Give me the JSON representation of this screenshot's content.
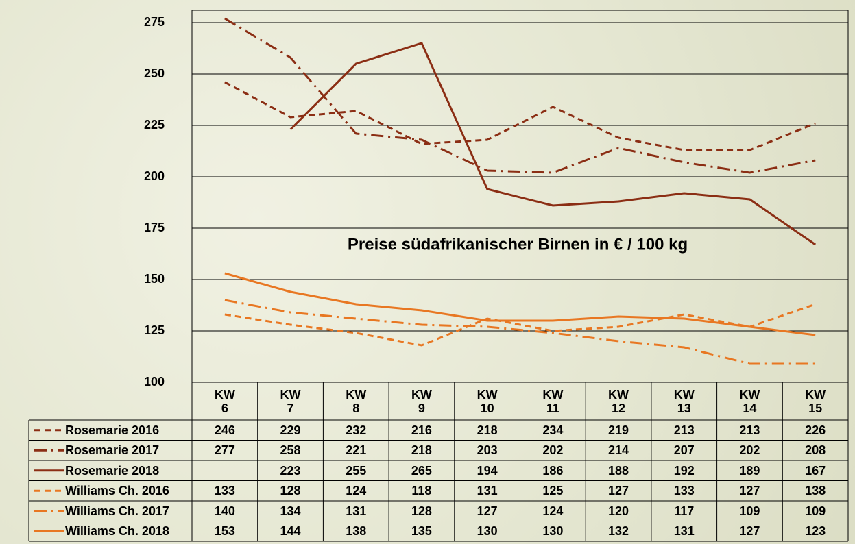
{
  "chart_data": {
    "type": "line",
    "title": "Preise südafrikanischer Birnen in € / 100 kg",
    "categories": [
      "KW 6",
      "KW 7",
      "KW 8",
      "KW 9",
      "KW 10",
      "KW 11",
      "KW 12",
      "KW 13",
      "KW 14",
      "KW 15"
    ],
    "series": [
      {
        "name": "Rosemarie 2016",
        "color": "#8b2e14",
        "dash": "dashed",
        "values": [
          246,
          229,
          232,
          216,
          218,
          234,
          219,
          213,
          213,
          226
        ]
      },
      {
        "name": "Rosemarie 2017",
        "color": "#8b2e14",
        "dash": "dashdot",
        "values": [
          277,
          258,
          221,
          218,
          203,
          202,
          214,
          207,
          202,
          208
        ]
      },
      {
        "name": "Rosemarie 2018",
        "color": "#8b2e14",
        "dash": "solid",
        "values": [
          null,
          223,
          255,
          265,
          194,
          186,
          188,
          192,
          189,
          167
        ]
      },
      {
        "name": "Williams Ch. 2016",
        "color": "#e87722",
        "dash": "dashed",
        "values": [
          133,
          128,
          124,
          118,
          131,
          125,
          127,
          133,
          127,
          138
        ]
      },
      {
        "name": "Williams Ch. 2017",
        "color": "#e87722",
        "dash": "dashdot",
        "values": [
          140,
          134,
          131,
          128,
          127,
          124,
          120,
          117,
          109,
          109
        ]
      },
      {
        "name": "Williams Ch. 2018",
        "color": "#e87722",
        "dash": "solid",
        "values": [
          153,
          144,
          138,
          135,
          130,
          130,
          132,
          131,
          127,
          123
        ]
      }
    ],
    "ylim": [
      100,
      280
    ],
    "yticks": [
      100,
      125,
      150,
      175,
      200,
      225,
      250,
      275
    ],
    "grid": true
  }
}
